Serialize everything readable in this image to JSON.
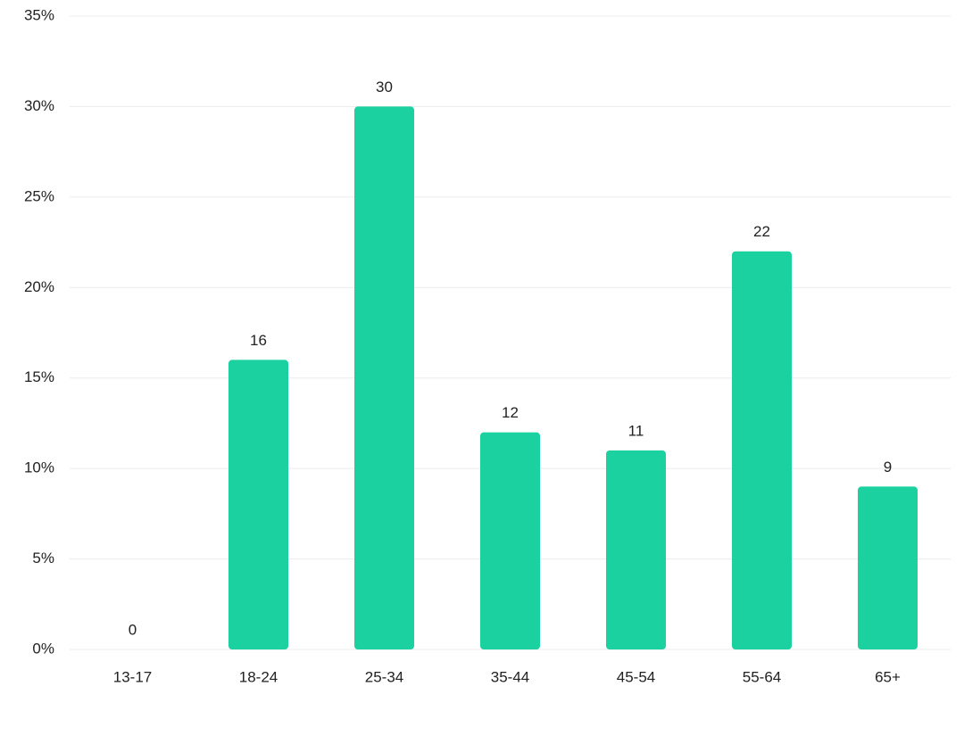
{
  "chart_data": {
    "type": "bar",
    "categories": [
      "13-17",
      "18-24",
      "25-34",
      "35-44",
      "45-54",
      "55-64",
      "65+"
    ],
    "values": [
      0,
      16,
      30,
      12,
      11,
      22,
      9
    ],
    "color": "#1bd1a0",
    "ylim": [
      0,
      35
    ],
    "yticks": [
      {
        "value": 0,
        "label": "0%"
      },
      {
        "value": 5,
        "label": "5%"
      },
      {
        "value": 10,
        "label": "10%"
      },
      {
        "value": 15,
        "label": "15%"
      },
      {
        "value": 20,
        "label": "20%"
      },
      {
        "value": 25,
        "label": "25%"
      },
      {
        "value": 30,
        "label": "30%"
      },
      {
        "value": 35,
        "label": "35%"
      }
    ],
    "grid": true,
    "data_labels": true
  }
}
